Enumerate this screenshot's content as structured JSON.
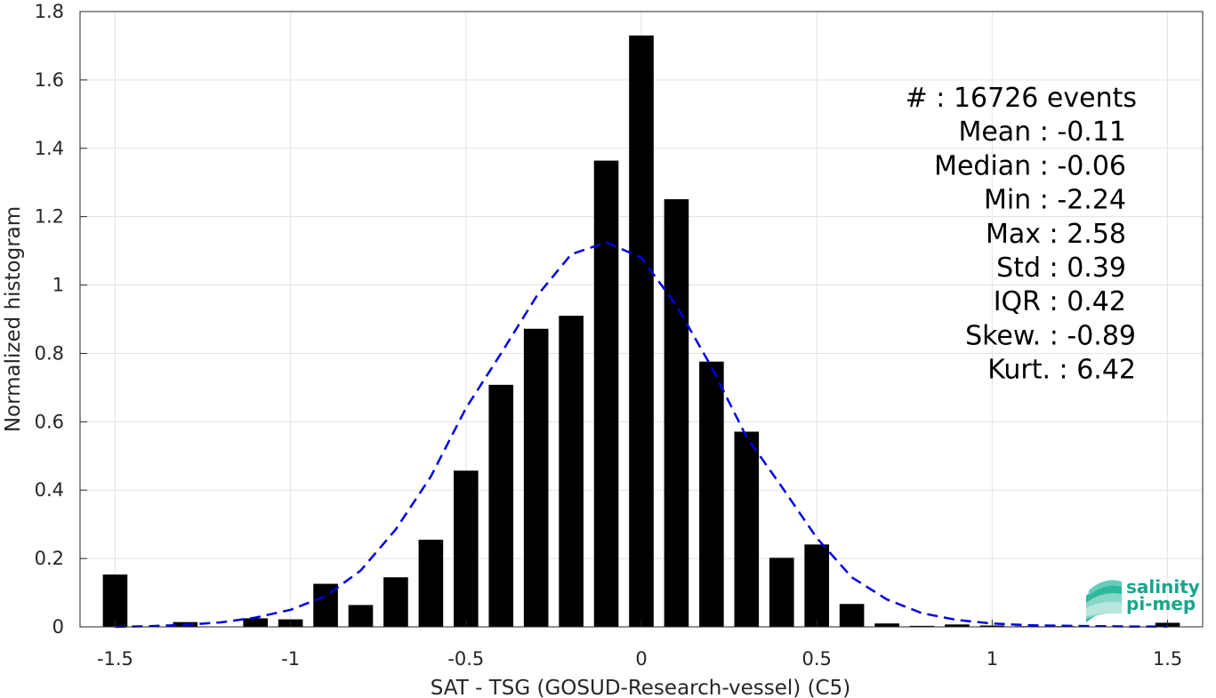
{
  "chart_data": {
    "type": "bar",
    "xlabel": "SAT - TSG (GOSUD-Research-vessel) (C5)",
    "ylabel": "Normalized histogram",
    "xlim": [
      -1.6,
      1.6
    ],
    "ylim": [
      0,
      1.8
    ],
    "grid": true,
    "xticks": [
      -1.5,
      -1,
      -0.5,
      0,
      0.5,
      1,
      1.5
    ],
    "xtick_labels": [
      "-1.5",
      "-1",
      "-0.5",
      "0",
      "0.5",
      "1",
      "1.5"
    ],
    "yticks": [
      0,
      0.2,
      0.4,
      0.6,
      0.8,
      1,
      1.2,
      1.4,
      1.6,
      1.8
    ],
    "ytick_labels": [
      "0",
      "0.2",
      "0.4",
      "0.6",
      "0.8",
      "1",
      "1.2",
      "1.4",
      "1.6",
      "1.8"
    ],
    "bar_color": "#000000",
    "bar_width": 0.07,
    "bars": [
      {
        "x": -1.5,
        "y": 0.153
      },
      {
        "x": -1.4,
        "y": 0.0
      },
      {
        "x": -1.3,
        "y": 0.014
      },
      {
        "x": -1.2,
        "y": 0.0
      },
      {
        "x": -1.1,
        "y": 0.025
      },
      {
        "x": -1.0,
        "y": 0.022
      },
      {
        "x": -0.9,
        "y": 0.126
      },
      {
        "x": -0.8,
        "y": 0.064
      },
      {
        "x": -0.7,
        "y": 0.145
      },
      {
        "x": -0.6,
        "y": 0.255
      },
      {
        "x": -0.5,
        "y": 0.457
      },
      {
        "x": -0.4,
        "y": 0.708
      },
      {
        "x": -0.3,
        "y": 0.872
      },
      {
        "x": -0.2,
        "y": 0.91
      },
      {
        "x": -0.1,
        "y": 1.364
      },
      {
        "x": 0.0,
        "y": 1.73
      },
      {
        "x": 0.1,
        "y": 1.251
      },
      {
        "x": 0.2,
        "y": 0.776
      },
      {
        "x": 0.3,
        "y": 0.571
      },
      {
        "x": 0.4,
        "y": 0.202
      },
      {
        "x": 0.5,
        "y": 0.241
      },
      {
        "x": 0.6,
        "y": 0.067
      },
      {
        "x": 0.7,
        "y": 0.01
      },
      {
        "x": 0.8,
        "y": 0.003
      },
      {
        "x": 0.9,
        "y": 0.007
      },
      {
        "x": 1.0,
        "y": 0.004
      },
      {
        "x": 1.1,
        "y": 0.002
      },
      {
        "x": 1.2,
        "y": 0.002
      },
      {
        "x": 1.3,
        "y": 0.0
      },
      {
        "x": 1.4,
        "y": 0.0
      },
      {
        "x": 1.5,
        "y": 0.012
      }
    ],
    "fit_curve": {
      "color": "#0000e0",
      "style": "dashed",
      "points": [
        [
          -1.5,
          0.0
        ],
        [
          -1.4,
          0.002
        ],
        [
          -1.3,
          0.006
        ],
        [
          -1.2,
          0.013
        ],
        [
          -1.1,
          0.027
        ],
        [
          -1.0,
          0.05
        ],
        [
          -0.9,
          0.09
        ],
        [
          -0.8,
          0.165
        ],
        [
          -0.7,
          0.285
        ],
        [
          -0.6,
          0.44
        ],
        [
          -0.5,
          0.64
        ],
        [
          -0.4,
          0.8
        ],
        [
          -0.3,
          0.965
        ],
        [
          -0.2,
          1.09
        ],
        [
          -0.1,
          1.125
        ],
        [
          0.0,
          1.08
        ],
        [
          0.1,
          0.94
        ],
        [
          0.2,
          0.76
        ],
        [
          0.3,
          0.555
        ],
        [
          0.4,
          0.41
        ],
        [
          0.5,
          0.26
        ],
        [
          0.6,
          0.145
        ],
        [
          0.7,
          0.08
        ],
        [
          0.8,
          0.04
        ],
        [
          0.9,
          0.02
        ],
        [
          1.0,
          0.01
        ],
        [
          1.1,
          0.005
        ],
        [
          1.2,
          0.003
        ],
        [
          1.3,
          0.002
        ],
        [
          1.4,
          0.001
        ],
        [
          1.5,
          0.001
        ]
      ]
    },
    "annotations": [
      "#  : 16726 events",
      "Mean : -0.11",
      "Median : -0.06",
      "Min : -2.24",
      "Max : 2.58",
      "Std : 0.39",
      "IQR : 0.42",
      "Skew. : -0.89",
      "Kurt. : 6.42"
    ]
  },
  "logo": {
    "line1": "salinity",
    "line2": "pi-mep",
    "color": "#1aa58c"
  }
}
